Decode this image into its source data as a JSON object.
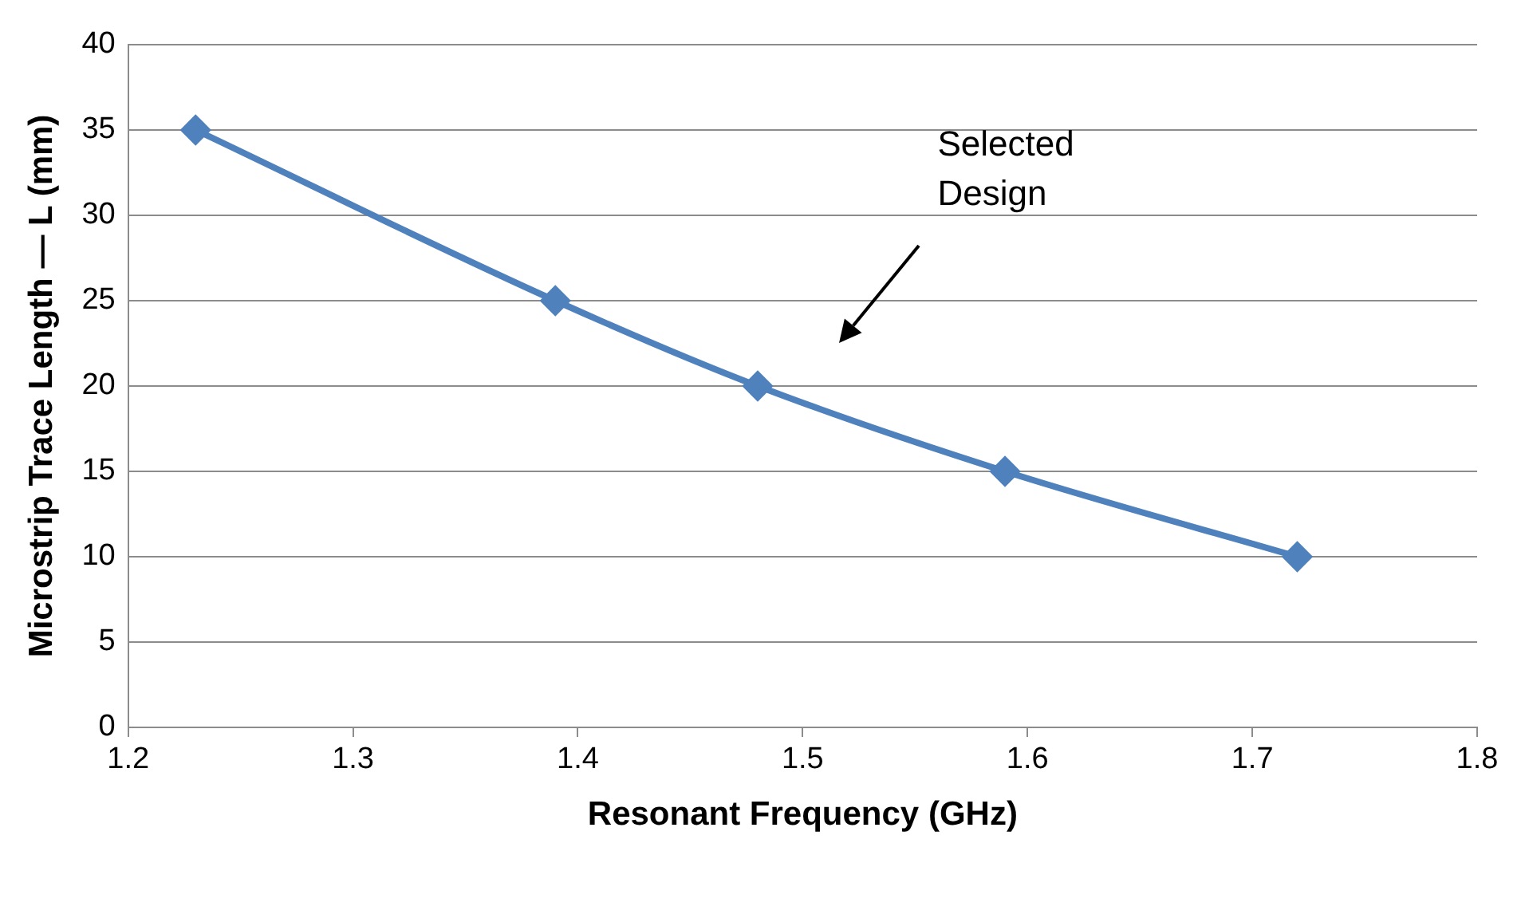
{
  "chart_data": {
    "type": "line",
    "xlabel": "Resonant Frequency (GHz)",
    "ylabel": "Microstrip Trace Length — L (mm)",
    "x": [
      1.23,
      1.39,
      1.48,
      1.59,
      1.72
    ],
    "series": [
      {
        "color": "#4f81bd",
        "values": [
          35,
          25,
          20,
          15,
          10
        ]
      }
    ],
    "xlim": [
      1.2,
      1.8
    ],
    "xticks": [
      {
        "value": 1.2,
        "label": "1.2"
      },
      {
        "value": 1.3,
        "label": "1.3"
      },
      {
        "value": 1.4,
        "label": "1.4"
      },
      {
        "value": 1.5,
        "label": "1.5"
      },
      {
        "value": 1.6,
        "label": "1.6"
      },
      {
        "value": 1.7,
        "label": "1.7"
      },
      {
        "value": 1.8,
        "label": "1.8"
      }
    ],
    "ylim": [
      0,
      40
    ],
    "yticks": [
      0,
      5,
      10,
      15,
      20,
      25,
      30,
      35,
      40
    ],
    "grid": "y",
    "legend": false,
    "marker": "diamond",
    "line_style": "solid",
    "annotations": [
      "Selected Design"
    ]
  }
}
